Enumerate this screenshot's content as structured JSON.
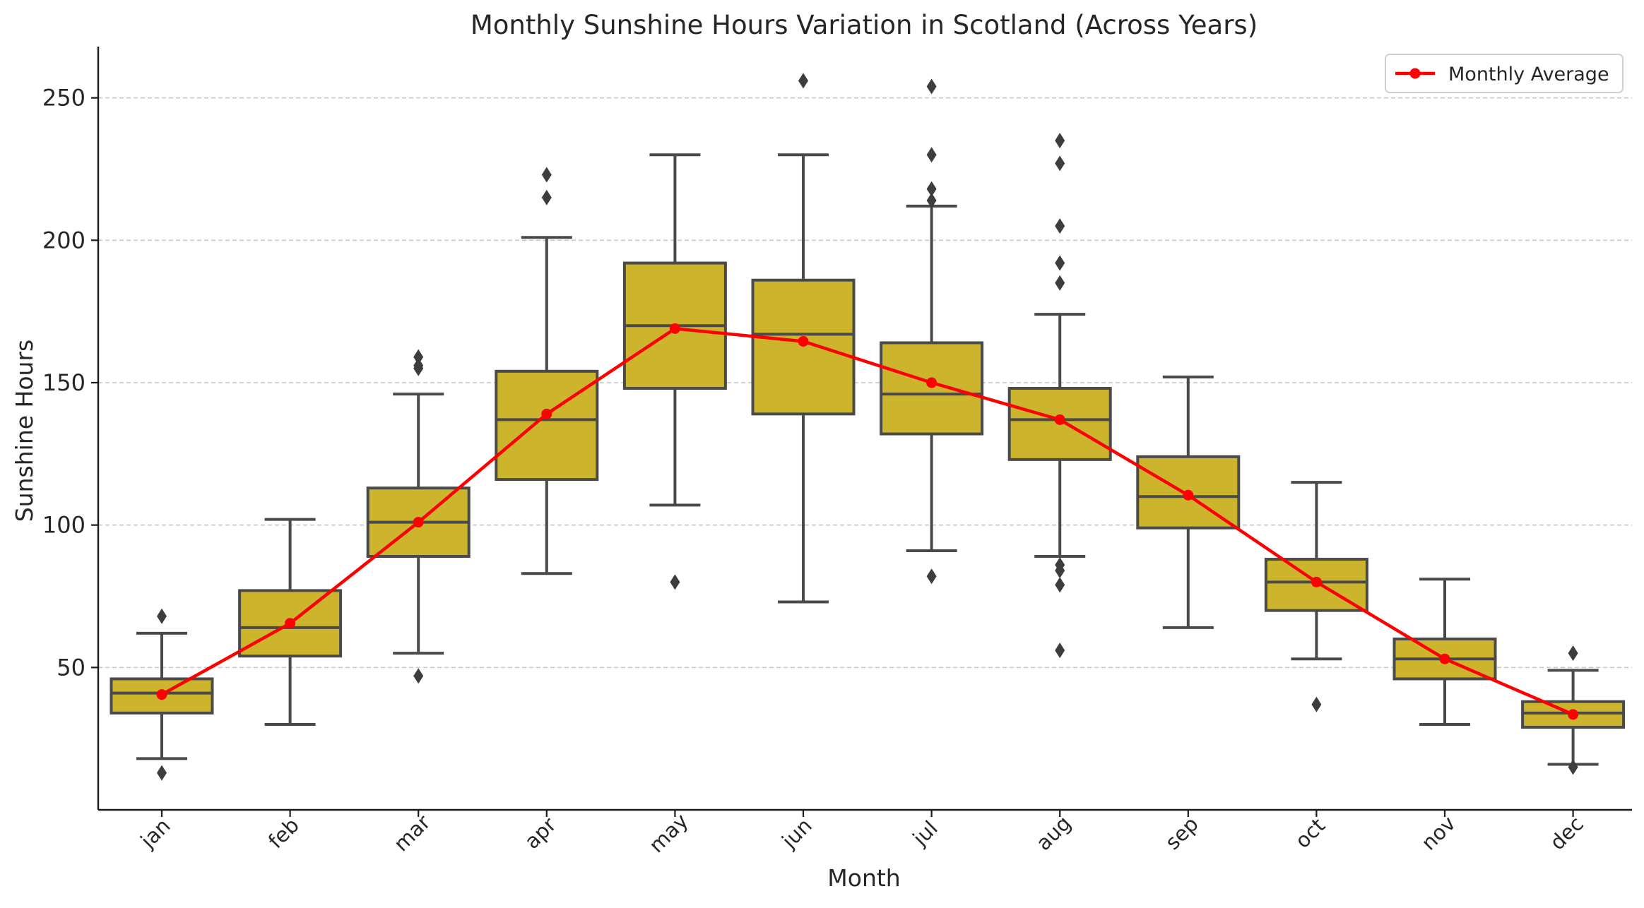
{
  "chart_data": {
    "type": "box",
    "title": "Monthly Sunshine Hours Variation in Scotland (Across Years)",
    "xlabel": "Month",
    "ylabel": "Sunshine Hours",
    "ylim": [
      0,
      268
    ],
    "yticks": [
      50,
      100,
      150,
      200,
      250
    ],
    "grid": "horizontal dashed",
    "legend_placement": "top-right",
    "box_color": "#CCB52D",
    "edge_color": "#4a4a4a",
    "line_color": "#ff0000",
    "categories": [
      "jan",
      "feb",
      "mar",
      "apr",
      "may",
      "jun",
      "jul",
      "aug",
      "sep",
      "oct",
      "nov",
      "dec"
    ],
    "boxes": [
      {
        "month": "jan",
        "whisker_low": 18,
        "q1": 34,
        "median": 41,
        "q3": 46,
        "whisker_high": 62,
        "outliers": [
          13,
          68
        ]
      },
      {
        "month": "feb",
        "whisker_low": 30,
        "q1": 54,
        "median": 64,
        "q3": 77,
        "whisker_high": 102,
        "outliers": []
      },
      {
        "month": "mar",
        "whisker_low": 55,
        "q1": 89,
        "median": 101,
        "q3": 113,
        "whisker_high": 146,
        "outliers": [
          47,
          155,
          156,
          159
        ]
      },
      {
        "month": "apr",
        "whisker_low": 83,
        "q1": 116,
        "median": 137,
        "q3": 154,
        "whisker_high": 201,
        "outliers": [
          215,
          223
        ]
      },
      {
        "month": "may",
        "whisker_low": 107,
        "q1": 148,
        "median": 170,
        "q3": 192,
        "whisker_high": 230,
        "outliers": [
          80
        ]
      },
      {
        "month": "jun",
        "whisker_low": 73,
        "q1": 139,
        "median": 167,
        "q3": 186,
        "whisker_high": 230,
        "outliers": [
          256
        ]
      },
      {
        "month": "jul",
        "whisker_low": 91,
        "q1": 132,
        "median": 146,
        "q3": 164,
        "whisker_high": 212,
        "outliers": [
          82,
          214,
          218,
          230,
          254
        ]
      },
      {
        "month": "aug",
        "whisker_low": 89,
        "q1": 123,
        "median": 137,
        "q3": 148,
        "whisker_high": 174,
        "outliers": [
          56,
          79,
          84,
          86,
          185,
          192,
          205,
          227,
          235
        ]
      },
      {
        "month": "sep",
        "whisker_low": 64,
        "q1": 99,
        "median": 110,
        "q3": 124,
        "whisker_high": 152,
        "outliers": []
      },
      {
        "month": "oct",
        "whisker_low": 53,
        "q1": 70,
        "median": 80,
        "q3": 88,
        "whisker_high": 115,
        "outliers": [
          37
        ]
      },
      {
        "month": "nov",
        "whisker_low": 30,
        "q1": 46,
        "median": 53,
        "q3": 60,
        "whisker_high": 81,
        "outliers": []
      },
      {
        "month": "dec",
        "whisker_low": 16,
        "q1": 29,
        "median": 34,
        "q3": 38,
        "whisker_high": 49,
        "outliers": [
          15,
          55
        ]
      }
    ],
    "series": [
      {
        "name": "Monthly Average",
        "values": [
          40.5,
          65.5,
          101,
          139,
          169,
          164.5,
          150,
          137,
          110.5,
          80,
          53,
          33.5
        ]
      }
    ]
  }
}
